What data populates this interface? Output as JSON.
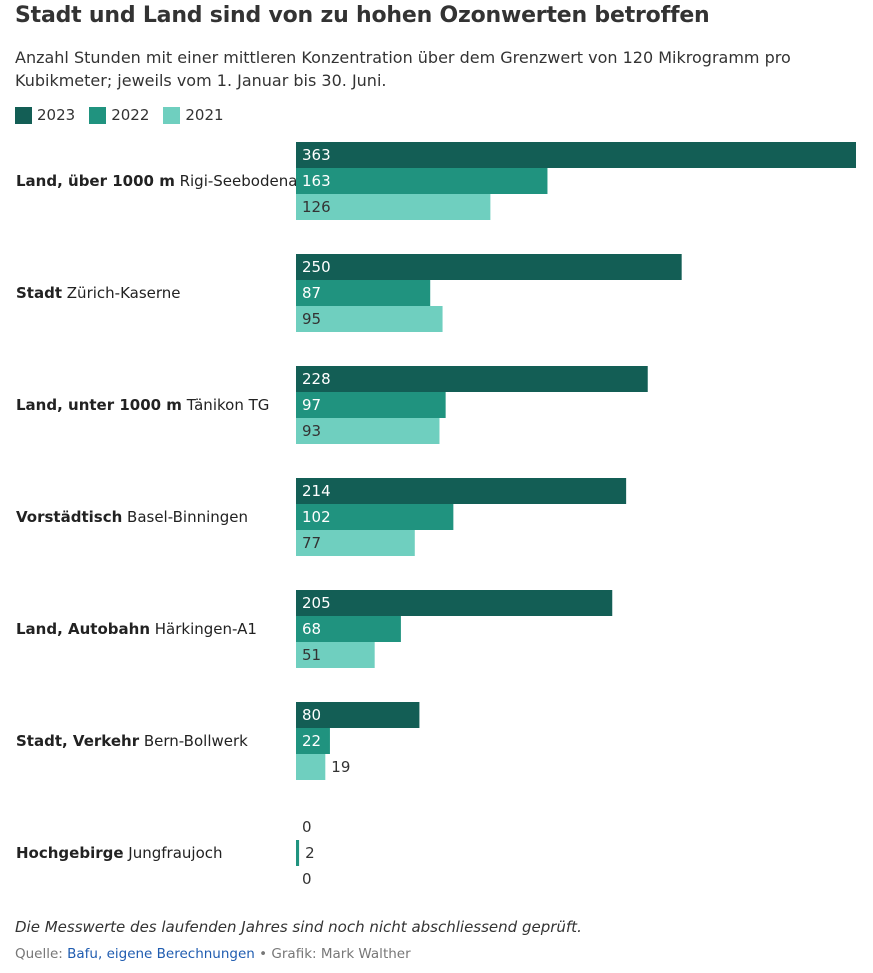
{
  "title": "Stadt und Land sind von zu hohen Ozonwerten betroffen",
  "subtitle": "Anzahl Stunden mit einer mittleren Konzentration über dem Grenzwert von 120 Mikrogramm pro Kubikmeter; jeweils vom 1. Januar bis 30. Juni.",
  "colors": {
    "2023": "#135e55",
    "2022": "#20937f",
    "2021": "#6fcfbf"
  },
  "chart_data": {
    "type": "bar",
    "orientation": "horizontal",
    "categories": [
      {
        "bold": "Land, über 1000 m",
        "station": "Rigi-Seebodenalp"
      },
      {
        "bold": "Stadt",
        "station": "Zürich-Kaserne"
      },
      {
        "bold": "Land, unter 1000 m",
        "station": "Tänikon TG"
      },
      {
        "bold": "Vorstädtisch",
        "station": "Basel-Binningen"
      },
      {
        "bold": "Land, Autobahn",
        "station": "Härkingen-A1"
      },
      {
        "bold": "Stadt, Verkehr",
        "station": "Bern-Bollwerk"
      },
      {
        "bold": "Hochgebirge",
        "station": "Jungfraujoch"
      }
    ],
    "series": [
      {
        "name": "2023",
        "values": [
          363,
          250,
          228,
          214,
          205,
          80,
          0
        ]
      },
      {
        "name": "2022",
        "values": [
          163,
          87,
          97,
          102,
          68,
          22,
          2
        ]
      },
      {
        "name": "2021",
        "values": [
          126,
          95,
          93,
          77,
          51,
          19,
          0
        ]
      }
    ],
    "xlim": [
      0,
      363
    ],
    "legend": "top-left",
    "grid": false
  },
  "note": "Die Messwerte des laufenden Jahres sind noch nicht abschliessend geprüft.",
  "source": {
    "prefix": "Quelle: ",
    "link_text": "Bafu, eigene Berechnungen",
    "suffix": " • Grafik: Mark Walther"
  }
}
